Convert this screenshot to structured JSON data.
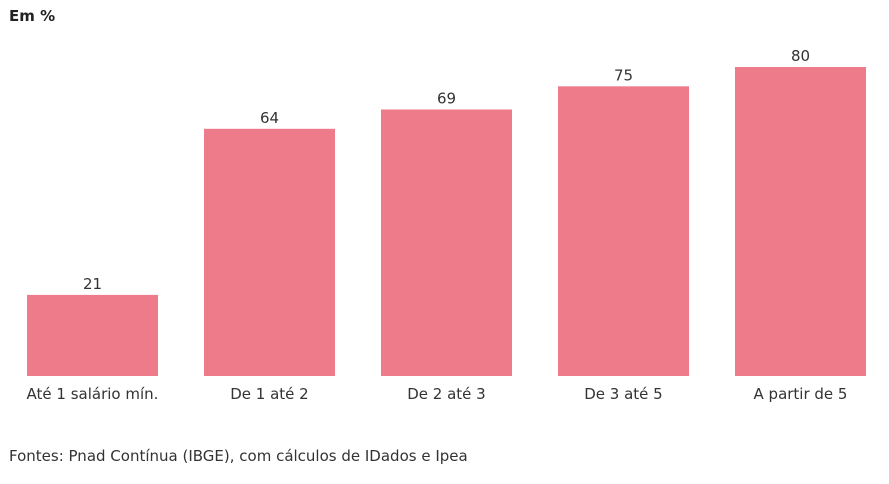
{
  "unit_label": "Em %",
  "source": "Fontes: Pnad Contínua (IBGE), com cálculos de IDados e Ipea",
  "colors": {
    "bar": "#ee7b89",
    "text": "#333333"
  },
  "chart_data": {
    "type": "bar",
    "title": "",
    "xlabel": "",
    "ylabel": "",
    "categories": [
      "Até 1 salário mín.",
      "De 1 até 2",
      "De 2 até 3",
      "De 3 até 5",
      "A partir de 5"
    ],
    "values": [
      21,
      64,
      69,
      75,
      80
    ],
    "ylim": [
      0,
      80
    ],
    "grid": false,
    "data_labels": true
  }
}
